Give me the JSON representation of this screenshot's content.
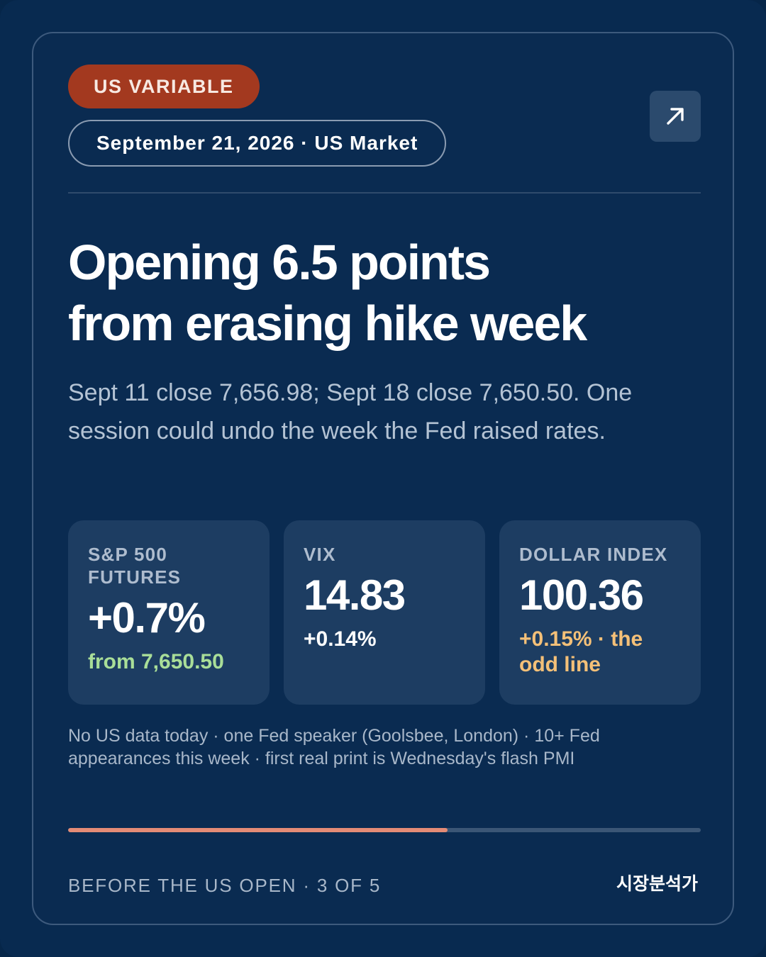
{
  "card": {
    "badge": "US VARIABLE",
    "dateline": "September 21, 2026 · US Market",
    "share_icon": "arrow-up-right-icon",
    "headline_line1": "Opening 6.5 points",
    "headline_line2": "from erasing hike week",
    "subtitle": "Sept 11 close 7,656.98; Sept 18 close 7,650.50. One session could undo the week the Fed raised rates."
  },
  "metrics": [
    {
      "label": "S&P 500 FUTURES",
      "value": "+0.7%",
      "note": "from 7,650.50"
    },
    {
      "label": "VIX",
      "value": "14.83",
      "note": "+0.14%"
    },
    {
      "label": "DOLLAR INDEX",
      "value": "100.36",
      "note": "+0.15% · the odd line"
    }
  ],
  "footnote": "No US data today · one Fed speaker (Goolsbee, London) · 10+ Fed appearances this week · first real print is Wednesday's flash PMI",
  "progress": {
    "current": 3,
    "total": 5,
    "fraction": 0.6
  },
  "footer": {
    "left": "BEFORE THE US OPEN · 3 OF 5",
    "right": "시장분석가"
  },
  "colors": {
    "background": "#0a2b51",
    "badge": "#a3391f",
    "progress": "#e48b76",
    "positive_green": "#a9de98",
    "warning_amber": "#f4c078"
  }
}
